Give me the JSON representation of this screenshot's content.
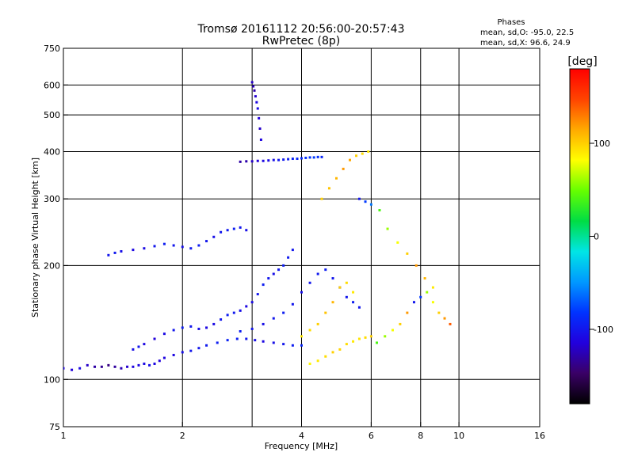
{
  "chart_data": {
    "type": "scatter",
    "title": "Tromsø 20161112 20:56:00-20:57:43",
    "subtitle": "RwPretec (8p)",
    "stats": {
      "heading": "Phases",
      "line1": "mean, sd,O: -95.0, 22.5",
      "line2": "mean, sd,X:  96.6, 24.9"
    },
    "xlabel": "Frequency [MHz]",
    "ylabel": "Stationary phase Virtual Height [km]",
    "x_scale": "log",
    "y_scale": "log",
    "xlim": [
      1,
      16
    ],
    "ylim": [
      75,
      750
    ],
    "x_ticks": [
      {
        "value": 1,
        "label": "1"
      },
      {
        "value": 2,
        "label": "2"
      },
      {
        "value": 4,
        "label": "4"
      },
      {
        "value": 6,
        "label": "6"
      },
      {
        "value": 8,
        "label": "8"
      },
      {
        "value": 10,
        "label": "10"
      },
      {
        "value": 16,
        "label": "16"
      }
    ],
    "y_ticks": [
      {
        "value": 75,
        "label": "75"
      },
      {
        "value": 100,
        "label": "100"
      },
      {
        "value": 200,
        "label": "200"
      },
      {
        "value": 300,
        "label": "300"
      },
      {
        "value": 400,
        "label": "400"
      },
      {
        "value": 500,
        "label": "500"
      },
      {
        "value": 600,
        "label": "600"
      },
      {
        "value": 750,
        "label": "750"
      }
    ],
    "grid": true,
    "grid_x": [
      2,
      3,
      4,
      6,
      8,
      10
    ],
    "grid_y": [
      100,
      200,
      300,
      400,
      500,
      600
    ],
    "colorbar": {
      "label": "[deg]",
      "range": [
        -180,
        180
      ],
      "ticks": [
        {
          "value": 100,
          "label": "100"
        },
        {
          "value": 0,
          "label": "0"
        },
        {
          "value": -100,
          "label": "-100"
        }
      ],
      "stops": [
        "#000000",
        "#3a0066",
        "#2200dd",
        "#0033ff",
        "#0099ff",
        "#00e5e5",
        "#00dd44",
        "#66ff00",
        "#ffff00",
        "#ffaa00",
        "#ff4400",
        "#ff0000"
      ]
    },
    "series": [
      {
        "x": [
          1.0,
          1.05,
          1.1,
          1.15,
          1.2,
          1.25,
          1.3,
          1.35,
          1.4,
          1.45,
          1.5,
          1.55,
          1.6,
          1.65,
          1.7,
          1.75,
          1.8,
          1.9,
          2.0,
          2.1,
          2.2,
          2.3,
          2.45,
          2.6,
          2.75,
          2.9,
          3.05,
          3.2,
          3.4,
          3.6,
          3.8,
          4.0
        ],
        "y": [
          107,
          106,
          107,
          109,
          108,
          108,
          109,
          108,
          107,
          108,
          108,
          109,
          110,
          109,
          110,
          112,
          114,
          116,
          118,
          119,
          121,
          123,
          125,
          127,
          128,
          128,
          127,
          126,
          125,
          124,
          123,
          123
        ],
        "phase": [
          -110,
          -115,
          -108,
          -120,
          -130,
          -135,
          -140,
          -132,
          -125,
          -118,
          -112,
          -110,
          -108,
          -105,
          -110,
          -115,
          -112,
          -110,
          -105,
          -100,
          -100,
          -98,
          -95,
          -92,
          -95,
          -100,
          -105,
          -110,
          -105,
          -100,
          -95,
          -90
        ]
      },
      {
        "x": [
          1.5,
          1.55,
          1.6,
          1.7,
          1.8,
          1.9,
          2.0,
          2.1,
          2.2,
          2.3,
          2.4,
          2.5,
          2.6,
          2.7,
          2.8,
          2.9,
          3.0,
          3.1,
          3.2,
          3.3,
          3.4,
          3.5,
          3.6,
          3.7,
          3.8
        ],
        "y": [
          120,
          122,
          124,
          128,
          132,
          135,
          137,
          138,
          136,
          137,
          140,
          144,
          148,
          150,
          152,
          156,
          160,
          168,
          178,
          185,
          190,
          195,
          200,
          210,
          220
        ],
        "phase": [
          -105,
          -100,
          -110,
          -115,
          -108,
          -100,
          -95,
          -100,
          -105,
          -110,
          -108,
          -100,
          -95,
          -98,
          -105,
          -110,
          -108,
          -100,
          -95,
          -100,
          -105,
          -100,
          -95,
          -98,
          -100
        ]
      },
      {
        "x": [
          2.8,
          3.0,
          3.2,
          3.4,
          3.6,
          3.8,
          4.0,
          4.2,
          4.4,
          4.6,
          4.8,
          5.0,
          5.2,
          5.4,
          5.6
        ],
        "y": [
          134,
          136,
          140,
          145,
          150,
          158,
          170,
          180,
          190,
          195,
          185,
          175,
          165,
          160,
          155
        ],
        "phase": [
          -95,
          -100,
          -105,
          -100,
          -95,
          -100,
          -105,
          -100,
          -98,
          -95,
          -100,
          -105,
          -100,
          -95,
          -100
        ]
      },
      {
        "x": [
          1.3,
          1.35,
          1.4,
          1.5,
          1.6,
          1.7,
          1.8,
          1.9,
          2.0,
          2.1,
          2.2,
          2.3,
          2.4,
          2.5,
          2.6,
          2.7,
          2.8,
          2.9
        ],
        "y": [
          213,
          216,
          218,
          220,
          222,
          225,
          228,
          226,
          224,
          222,
          226,
          232,
          238,
          245,
          248,
          250,
          252,
          248
        ],
        "phase": [
          -100,
          -98,
          -105,
          -110,
          -108,
          -100,
          -95,
          -100,
          -105,
          -98,
          -95,
          -100,
          -105,
          -100,
          -98,
          -95,
          -100,
          -105
        ]
      },
      {
        "x": [
          2.8,
          2.9,
          3.0,
          3.1,
          3.2,
          3.3,
          3.4,
          3.5,
          3.6,
          3.7,
          3.8,
          3.9,
          4.0,
          4.1,
          4.2,
          4.3,
          4.4,
          4.5
        ],
        "y": [
          376,
          377,
          377,
          378,
          378,
          379,
          380,
          380,
          381,
          382,
          383,
          383,
          384,
          385,
          386,
          386,
          387,
          387
        ],
        "phase": [
          -130,
          -128,
          -120,
          -115,
          -110,
          -108,
          -105,
          -100,
          -98,
          -95,
          -92,
          -90,
          -88,
          -85,
          -82,
          -80,
          -85,
          -90
        ]
      },
      {
        "x": [
          3.0,
          3.02,
          3.04,
          3.06,
          3.08,
          3.1,
          3.12,
          3.14,
          3.16
        ],
        "y": [
          610,
          595,
          580,
          560,
          540,
          520,
          490,
          460,
          430
        ],
        "phase": [
          -120,
          -125,
          -130,
          -118,
          -110,
          -108,
          -115,
          -120,
          -112
        ]
      },
      {
        "x": [
          4.2,
          4.4,
          4.6,
          4.8,
          5.0,
          5.2,
          5.4,
          5.6,
          5.8,
          6.0
        ],
        "y": [
          110,
          112,
          115,
          118,
          120,
          124,
          126,
          128,
          129,
          130
        ],
        "phase": [
          85,
          90,
          95,
          100,
          98,
          95,
          90,
          92,
          95,
          100
        ]
      },
      {
        "x": [
          4.0,
          4.2,
          4.4,
          4.6,
          4.8,
          5.0,
          5.2,
          5.4
        ],
        "y": [
          130,
          135,
          140,
          150,
          160,
          175,
          180,
          170
        ],
        "phase": [
          90,
          95,
          100,
          105,
          110,
          100,
          95,
          90
        ]
      },
      {
        "x": [
          4.5,
          4.7,
          4.9,
          5.1,
          5.3,
          5.5,
          5.7,
          5.9
        ],
        "y": [
          300,
          320,
          340,
          360,
          380,
          390,
          395,
          400
        ],
        "phase": [
          100,
          105,
          110,
          120,
          115,
          100,
          95,
          90
        ]
      },
      {
        "x": [
          5.6,
          5.8,
          6.0,
          6.3,
          6.6,
          7.0,
          7.4,
          7.8,
          8.2,
          8.6
        ],
        "y": [
          300,
          295,
          290,
          280,
          250,
          230,
          215,
          200,
          185,
          175
        ],
        "phase": [
          -100,
          -80,
          -60,
          40,
          60,
          80,
          100,
          120,
          110,
          90
        ]
      },
      {
        "x": [
          6.2,
          6.5,
          6.8,
          7.1,
          7.4,
          7.7,
          8.0,
          8.3,
          8.6,
          8.9,
          9.2,
          9.5
        ],
        "y": [
          125,
          130,
          135,
          140,
          150,
          160,
          165,
          170,
          160,
          150,
          145,
          140
        ],
        "phase": [
          40,
          60,
          80,
          100,
          120,
          -100,
          -80,
          60,
          80,
          100,
          120,
          140
        ]
      }
    ]
  }
}
